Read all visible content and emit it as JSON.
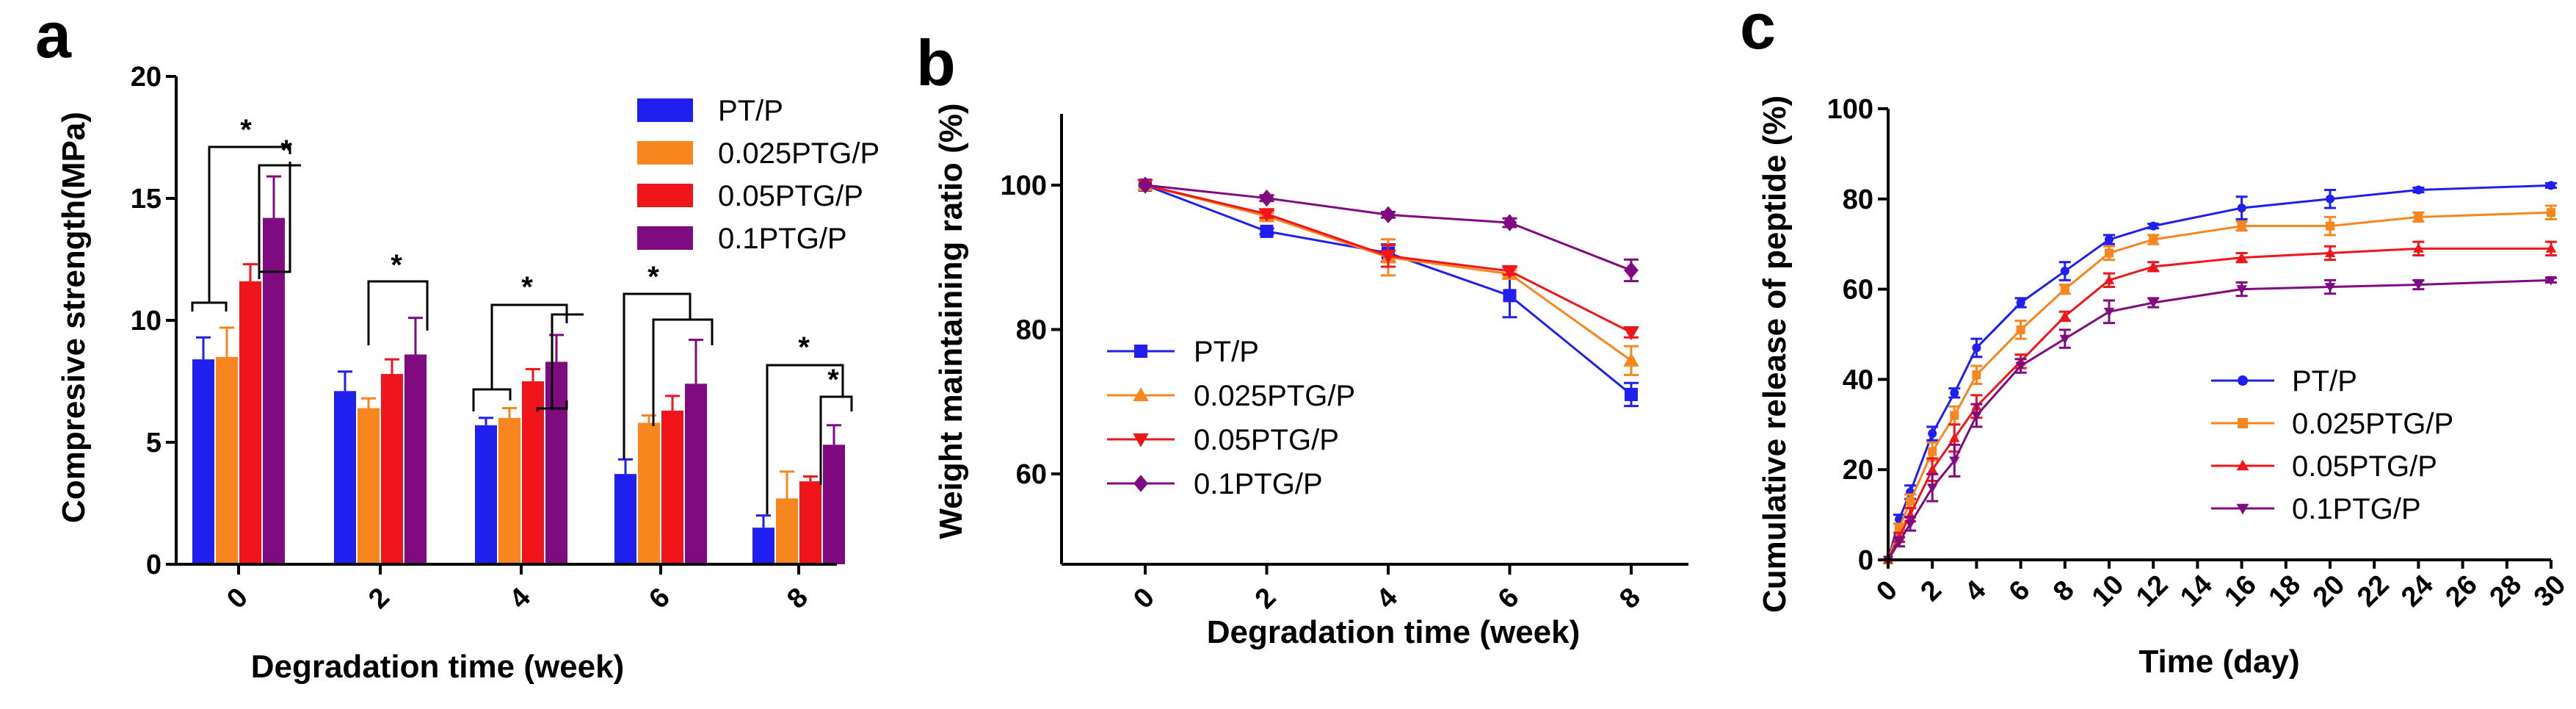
{
  "colors": {
    "PT/P": "#1f1ff0",
    "0.025PTG/P": "#f7861f",
    "0.05PTG/P": "#f0151b",
    "0.1PTG/P": "#800a80"
  },
  "chart_data": [
    {
      "panel_letter": "a",
      "type": "bar",
      "xlabel": "Degradation time (week)",
      "ylabel": "Compresive strength(MPa)",
      "ylim": [
        0,
        20
      ],
      "yticks": [
        0,
        5,
        10,
        15,
        20
      ],
      "categories": [
        "0",
        "2",
        "4",
        "6",
        "8"
      ],
      "legend_position": "top-right",
      "series": [
        {
          "name": "PT/P",
          "values": [
            8.4,
            7.1,
            5.7,
            3.7,
            1.5
          ],
          "errors": [
            0.9,
            0.8,
            0.3,
            0.6,
            0.5
          ]
        },
        {
          "name": "0.025PTG/P",
          "values": [
            8.5,
            6.4,
            6.0,
            5.8,
            2.7
          ],
          "errors": [
            1.2,
            0.4,
            0.4,
            0.3,
            1.1
          ]
        },
        {
          "name": "0.05PTG/P",
          "values": [
            11.6,
            7.8,
            7.5,
            6.3,
            3.4
          ],
          "errors": [
            0.7,
            0.6,
            0.5,
            0.6,
            0.2
          ]
        },
        {
          "name": "0.1PTG/P",
          "values": [
            14.2,
            8.6,
            8.3,
            7.4,
            4.9
          ],
          "errors": [
            1.7,
            1.5,
            1.1,
            1.8,
            0.8
          ]
        }
      ],
      "significance_label": "*"
    },
    {
      "panel_letter": "b",
      "type": "line",
      "xlabel": "Degradation time (week)",
      "ylabel": "Weight maintaining ratio (%)",
      "ylim": [
        50,
        110
      ],
      "yticks": [
        60,
        80,
        100
      ],
      "x": [
        0,
        2,
        4,
        6,
        8
      ],
      "legend_position": "bottom-left",
      "series": [
        {
          "name": "PT/P",
          "marker": "square",
          "values": [
            100,
            93.6,
            90.6,
            84.7,
            71.0
          ],
          "errors": [
            0,
            0.4,
            1.2,
            3.0,
            1.6
          ]
        },
        {
          "name": "0.025PTG/P",
          "marker": "triangle-up",
          "values": [
            100,
            95.7,
            90.0,
            87.7,
            75.7
          ],
          "errors": [
            0,
            0.5,
            2.5,
            0.5,
            2.0
          ]
        },
        {
          "name": "0.05PTG/P",
          "marker": "triangle-down",
          "values": [
            100,
            96.0,
            90.2,
            88.1,
            79.6
          ],
          "errors": [
            0,
            0.5,
            1.5,
            0.5,
            0.7
          ]
        },
        {
          "name": "0.1PTG/P",
          "marker": "diamond",
          "values": [
            100,
            98.2,
            95.9,
            94.8,
            88.2
          ],
          "errors": [
            0,
            0.4,
            0.4,
            0.6,
            1.5
          ]
        }
      ]
    },
    {
      "panel_letter": "c",
      "type": "line",
      "xlabel": "Time (day)",
      "ylabel": "Cumulative release of peptide (%)",
      "xlim": [
        0,
        30
      ],
      "ylim": [
        0,
        100
      ],
      "xticks": [
        0,
        2,
        4,
        6,
        8,
        10,
        12,
        14,
        16,
        18,
        20,
        22,
        24,
        26,
        28,
        30
      ],
      "yticks": [
        0,
        20,
        40,
        60,
        80,
        100
      ],
      "x": [
        0,
        0.5,
        1,
        2,
        3,
        4,
        6,
        8,
        10,
        12,
        16,
        20,
        24,
        30
      ],
      "legend_position": "bottom-right",
      "series": [
        {
          "name": "PT/P",
          "marker": "circle",
          "values": [
            0,
            9,
            15,
            28,
            37,
            47,
            57,
            64,
            71,
            74,
            78,
            80,
            82,
            83
          ],
          "errors": [
            0,
            1,
            1.5,
            1.5,
            1,
            2,
            1,
            2,
            1,
            0.5,
            2.5,
            2,
            0.5,
            0.5
          ]
        },
        {
          "name": "0.025PTG/P",
          "marker": "square",
          "values": [
            0,
            7,
            13,
            24,
            32,
            41,
            51,
            60,
            68,
            71,
            74,
            74,
            76,
            77
          ],
          "errors": [
            0,
            1,
            1.5,
            2,
            2,
            2,
            2,
            1,
            1.5,
            1,
            1,
            2,
            1,
            1.5
          ]
        },
        {
          "name": "0.05PTG/P",
          "marker": "triangle-up",
          "values": [
            0,
            5,
            10,
            20,
            27,
            34,
            44,
            54,
            62,
            65,
            67,
            68,
            69,
            69
          ],
          "errors": [
            0,
            1,
            1.5,
            2.5,
            3,
            2.5,
            1.5,
            1,
            1.5,
            1,
            1,
            1.5,
            1.5,
            1.5
          ]
        },
        {
          "name": "0.1PTG/P",
          "marker": "triangle-down",
          "values": [
            0,
            4,
            8,
            16,
            22,
            32,
            43,
            49,
            55,
            57,
            60,
            60.5,
            61,
            62
          ],
          "errors": [
            0,
            1,
            1.5,
            3,
            3.5,
            2.5,
            1.5,
            2,
            2.5,
            1,
            1.5,
            1.5,
            1,
            0.5
          ]
        }
      ]
    }
  ]
}
